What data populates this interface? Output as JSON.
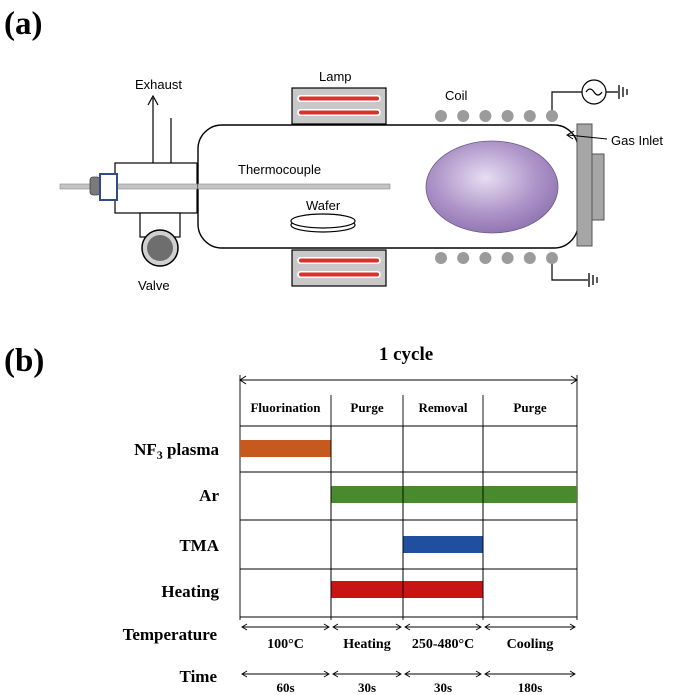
{
  "panel_a": {
    "label": "(a)",
    "labels": {
      "exhaust": "Exhaust",
      "lamp": "Lamp",
      "coil": "Coil",
      "gas_inlet": "Gas Inlet",
      "thermocouple": "Thermocouple",
      "wafer": "Wafer",
      "valve": "Valve"
    },
    "colors": {
      "lamp_element": "#d9302c",
      "plasma": "#a990c4",
      "coil_bead": "#9b9b9b",
      "chamber_fill": "#ffffff",
      "flange": "#a6a6a6"
    },
    "coil_bead_count": 6,
    "icons": {
      "ac_source": "ac-source-icon",
      "ground": "ground-icon"
    }
  },
  "panel_b": {
    "label": "(b)",
    "cycle_label": "1 cycle",
    "steps": [
      {
        "name": "Fluorination",
        "temperature": "100°C",
        "time": "60s"
      },
      {
        "name": "Purge",
        "temperature": "Heating",
        "time": "30s"
      },
      {
        "name": "Removal",
        "temperature": "250-480°C",
        "time": "30s"
      },
      {
        "name": "Purge",
        "temperature": "Cooling",
        "time": "180s"
      }
    ],
    "rows": [
      {
        "label_main": "NF",
        "label_sub": "3",
        "label_rest": " plasma",
        "color": "#c65a1e",
        "active_from": 0,
        "active_to": 1
      },
      {
        "label_main": "Ar",
        "label_sub": "",
        "label_rest": "",
        "color": "#4a8a2e",
        "active_from": 1,
        "active_to": 4
      },
      {
        "label_main": "TMA",
        "label_sub": "",
        "label_rest": "",
        "color": "#1f4f9e",
        "active_from": 2,
        "active_to": 3
      },
      {
        "label_main": "Heating",
        "label_sub": "",
        "label_rest": "",
        "color": "#c81414",
        "active_from": 1,
        "active_to": 3
      }
    ],
    "temperature_label": "Temperature",
    "time_label": "Time"
  }
}
